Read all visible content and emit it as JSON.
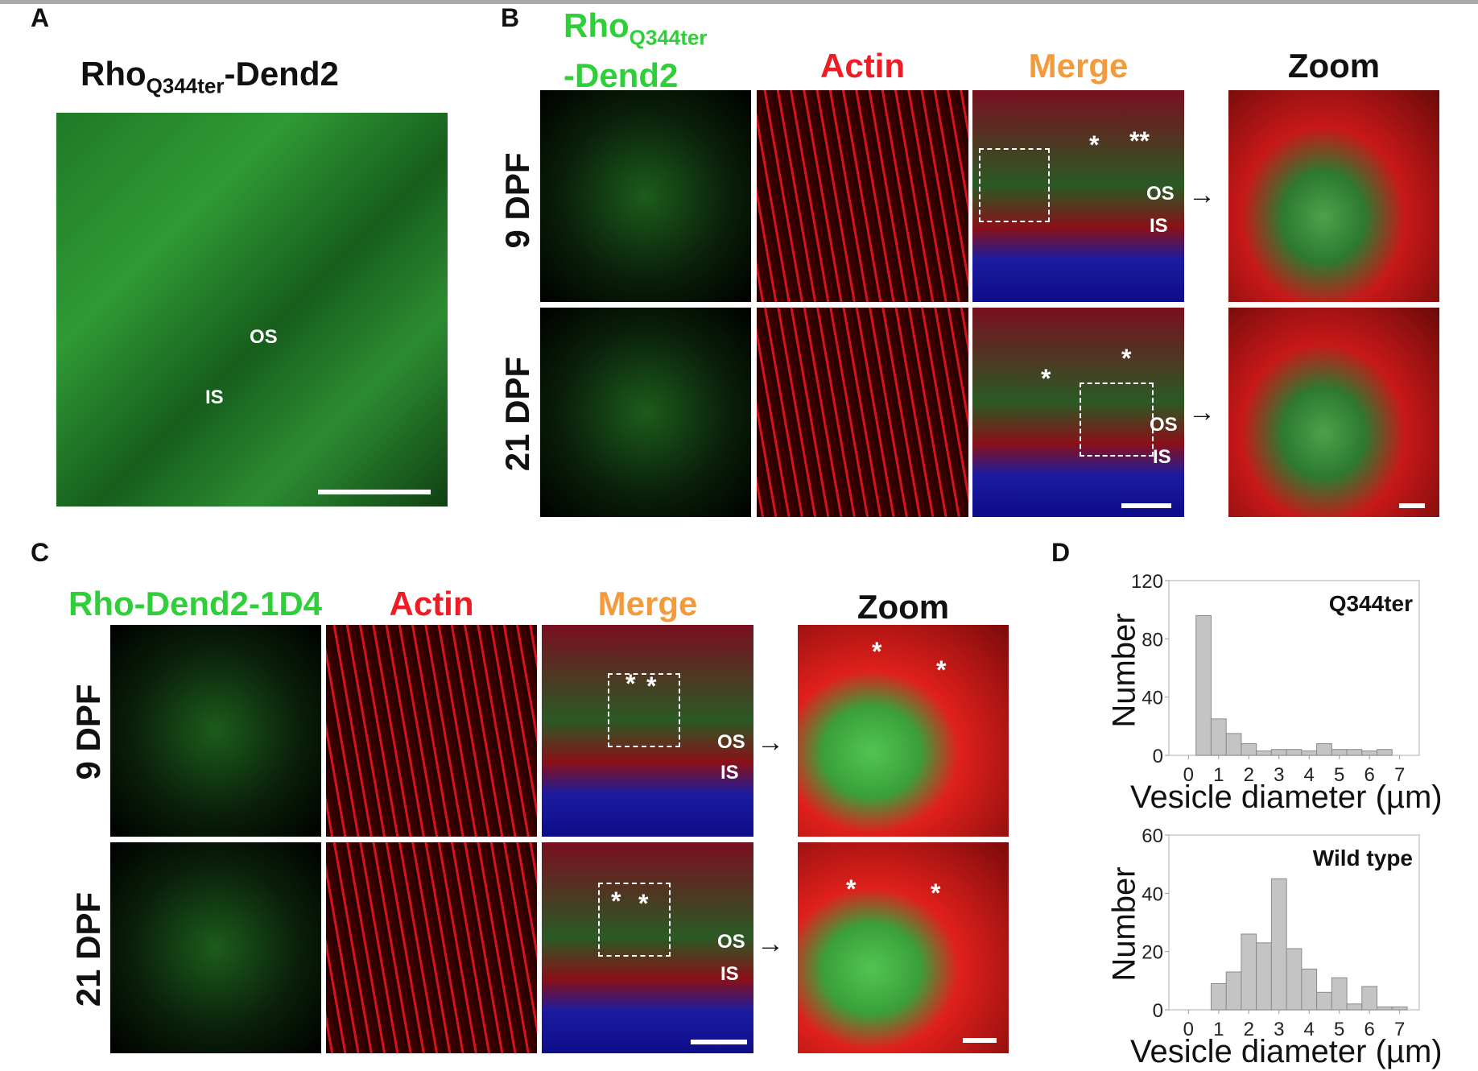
{
  "panel_A": {
    "label": "A",
    "title_main": "Rho",
    "title_sub": "Q344ter",
    "title_suffix": "-Dend2",
    "annotations": {
      "os": "OS",
      "is": "IS"
    }
  },
  "panel_B": {
    "label": "B",
    "columns": [
      {
        "main": "Rho",
        "sub": "Q344ter",
        "line2": "-Dend2",
        "color": "#2fcf3a"
      },
      {
        "main": "Actin",
        "color": "#ee1c24"
      },
      {
        "main": "Merge",
        "color": "#f29a3c"
      },
      {
        "main": "Zoom",
        "color": "#111111"
      }
    ],
    "rows": [
      "9 DPF",
      "21 DPF"
    ],
    "annotations": {
      "os": "OS",
      "is": "IS",
      "star": "*",
      "double_star": "**"
    }
  },
  "panel_C": {
    "label": "C",
    "columns": [
      {
        "main": "Rho-Dend2-1D4",
        "color": "#2fcf3a"
      },
      {
        "main": "Actin",
        "color": "#ee1c24"
      },
      {
        "main": "Merge",
        "color": "#f29a3c"
      },
      {
        "main": "Zoom",
        "color": "#111111"
      }
    ],
    "rows": [
      "9 DPF",
      "21 DPF"
    ],
    "annotations": {
      "os": "OS",
      "is": "IS",
      "star": "*"
    }
  },
  "panel_D": {
    "label": "D"
  },
  "chart_data": [
    {
      "type": "bar",
      "title": "Q344ter",
      "xlabel": "Vesicle diameter (µm)",
      "ylabel": "Number",
      "x": [
        0.5,
        1.0,
        1.5,
        2.0,
        2.5,
        3.0,
        3.5,
        4.0,
        4.5,
        5.0,
        5.5,
        6.0,
        6.5
      ],
      "values": [
        96,
        25,
        15,
        8,
        3,
        4,
        4,
        3,
        8,
        4,
        4,
        3,
        4
      ],
      "bin_width": 0.5,
      "xlim": [
        -0.65,
        7.65
      ],
      "ylim": [
        0,
        120
      ],
      "xticks": [
        "0",
        "1",
        "2",
        "3",
        "4",
        "5",
        "6",
        "7"
      ],
      "yticks": [
        "0",
        "40",
        "80",
        "120"
      ],
      "bar_color": "#c4c4c4"
    },
    {
      "type": "bar",
      "title": "Wild type",
      "xlabel": "Vesicle diameter (µm)",
      "ylabel": "Number",
      "x": [
        1.0,
        1.5,
        2.0,
        2.5,
        3.0,
        3.5,
        4.0,
        4.5,
        5.0,
        5.5,
        6.0,
        6.5,
        7.0
      ],
      "values": [
        9,
        13,
        26,
        23,
        45,
        21,
        14,
        6,
        11,
        2,
        8,
        1,
        1
      ],
      "bin_width": 0.5,
      "xlim": [
        -0.65,
        7.65
      ],
      "ylim": [
        0,
        60
      ],
      "xticks": [
        "0",
        "1",
        "2",
        "3",
        "4",
        "5",
        "6",
        "7"
      ],
      "yticks": [
        "0",
        "20",
        "40",
        "60"
      ],
      "bar_color": "#c4c4c4"
    }
  ]
}
